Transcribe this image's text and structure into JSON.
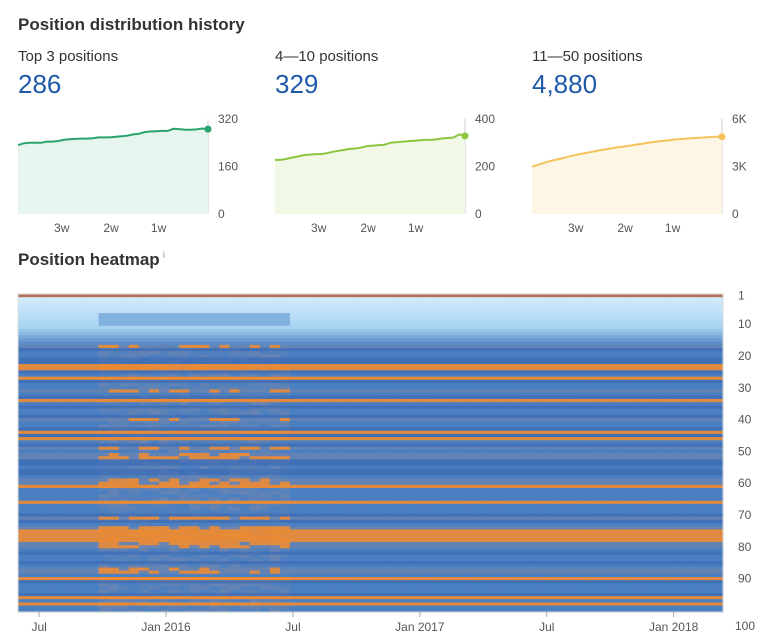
{
  "headings": {
    "distribution": "Position distribution history",
    "heatmap": "Position heatmap",
    "info": "i"
  },
  "metrics": [
    {
      "label": "Top 3 positions",
      "value": "286"
    },
    {
      "label": "4—10 positions",
      "value": "329"
    },
    {
      "label": "11—50 positions",
      "value": "4,880"
    }
  ],
  "chart_data": [
    {
      "type": "area",
      "title": "Top 3 positions",
      "color": "#2ba36e",
      "fill": "#e6f5ee",
      "ylim": [
        0,
        320
      ],
      "yticks": [
        "320",
        "160",
        "0"
      ],
      "xticks": [
        "3w",
        "2w",
        "1w"
      ],
      "values": [
        232,
        238,
        240,
        240,
        240,
        244,
        244,
        246,
        250,
        252,
        253,
        254,
        254,
        255,
        258,
        258,
        258,
        260,
        262,
        264,
        268,
        270,
        276,
        278,
        279,
        280,
        280,
        287,
        286,
        284,
        284,
        285,
        288,
        286
      ]
    },
    {
      "type": "area",
      "title": "4—10 positions",
      "color": "#8cc63f",
      "fill": "#f1f8e6",
      "ylim": [
        0,
        400
      ],
      "yticks": [
        "400",
        "200",
        "0"
      ],
      "xticks": [
        "3w",
        "2w",
        "1w"
      ],
      "values": [
        228,
        228,
        232,
        238,
        242,
        248,
        250,
        252,
        252,
        256,
        262,
        266,
        270,
        274,
        276,
        280,
        286,
        288,
        290,
        292,
        300,
        302,
        304,
        306,
        308,
        310,
        312,
        312,
        314,
        318,
        320,
        322,
        335,
        329
      ]
    },
    {
      "type": "area",
      "title": "11—50 positions",
      "color": "#f5c35c",
      "fill": "#fdf6e4",
      "ylim": [
        0,
        6000
      ],
      "yticks": [
        "6K",
        "3K",
        "0"
      ],
      "xticks": [
        "3w",
        "2w",
        "1w"
      ],
      "values": [
        3000,
        3100,
        3220,
        3330,
        3420,
        3500,
        3590,
        3680,
        3760,
        3830,
        3900,
        3970,
        4040,
        4100,
        4160,
        4210,
        4260,
        4320,
        4380,
        4430,
        4490,
        4540,
        4590,
        4630,
        4670,
        4710,
        4740,
        4770,
        4800,
        4820,
        4840,
        4860,
        4880,
        4880
      ]
    },
    {
      "type": "heatmap",
      "title": "Position heatmap",
      "x_labels": [
        "Jul",
        "Jan 2016",
        "Jul",
        "Jan 2017",
        "Jul",
        "Jan 2018"
      ],
      "y_labels": [
        "1",
        "10",
        "20",
        "30",
        "40",
        "50",
        "60",
        "70",
        "80",
        "90",
        "100"
      ],
      "colors": {
        "low": "#d6ecfa",
        "mid": "#4a7fc1",
        "high": "#e98a35",
        "top": "#b5705a"
      }
    }
  ]
}
